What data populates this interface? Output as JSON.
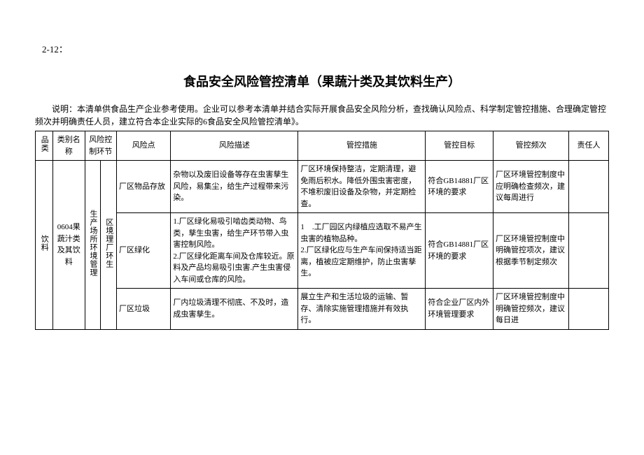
{
  "page_ref": "2-12：",
  "title": "食品安全风险管控清单（果蔬汁类及其饮料生产）",
  "intro": "说明：本清单供食品生产企业参考使用。企业可以参考本清单并结合实际开展食品安全风险分析，查找确认风险点、科学制定管控措施、合理确定管控频次并明确责任人员，建立符合本企业实际的6食品安全风险管控清单》。",
  "headers": {
    "col0": "品类",
    "col1": "类别名称",
    "col2_3": "风险控制环节",
    "col4": "风险点",
    "col5": "风险描述",
    "col6": "管控措施",
    "col7": "管控目标",
    "col8": "管控频次",
    "col9": "责任人"
  },
  "category": "饮料",
  "class_name": "0604果蔬汁类及其饮料",
  "ctrl_link1": "生产场所环境管理",
  "ctrl_link2": "区境理厂环生",
  "rows": [
    {
      "point": "厂区物品存放",
      "risk": "杂物以及废旧设备等存在虫害孳生风险，易集尘，给生产过程带来污染。",
      "measure": "厂区环境保持整洁，定期清理，避免雨后积水。降低外围虫害密度，不堆积废旧设备及杂物，并定期检查。",
      "target": "符合GB14881厂区环境的要求",
      "freq": "厂区环境管控制度中应明确检查频次，建议每周进行"
    },
    {
      "point": "厂区绿化",
      "risk": "1.厂区绿化易吸引啮齿类动物、鸟类，孳生虫害，给生产环节带入虫害控制风险。\n2.厂区绿化距离车间及仓库较近。原料及产品均易吸引虫害.产生虫害侵入车间或仓库的风险。",
      "measure": "1　.工厂园区内绿植应选取不易产生虫害的植物品种。\n2.厂区绿化应与生产车间保持适当距离，植被应定期维护，防止虫害孳生。",
      "target": "符合GB14881厂区环境的要求",
      "freq": "厂区环境管控制度中明确管控项次，建议根据季节制定频次"
    },
    {
      "point": "厂区垃圾",
      "risk": "厂内垃圾清理不彻底、不及时，造成虫害孳生。",
      "measure": "展立生产和生活垃圾的运输、暂存、清除实施管理措施并有效执行。",
      "target": "符合企业厂区内外环境管理要求",
      "freq": "厂区环境管控制度中明确管控频次，建议每日进"
    }
  ]
}
